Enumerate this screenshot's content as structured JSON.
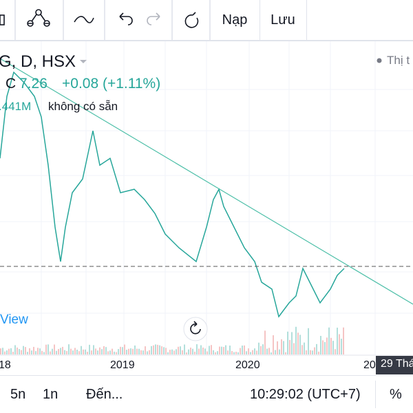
{
  "toolbar": {
    "buttons": [
      "Nạp",
      "Lưu"
    ]
  },
  "legend": {
    "symbol": "G, D, HSX",
    "close_label": "C",
    "close": "7.26",
    "change": "+0.08 (+1.11%)",
    "volume": ".441M",
    "volume_note": "không có sẵn"
  },
  "legend_right": "Thị t",
  "view_link": "View",
  "x_axis": {
    "labels": [
      "18",
      "2019",
      "2020",
      "20"
    ]
  },
  "crosshair_date": "29 Thá",
  "bottom_bar": [
    "5n",
    "1n",
    "Đến...",
    "10:29:02 (UTC+7)",
    "%"
  ]
}
